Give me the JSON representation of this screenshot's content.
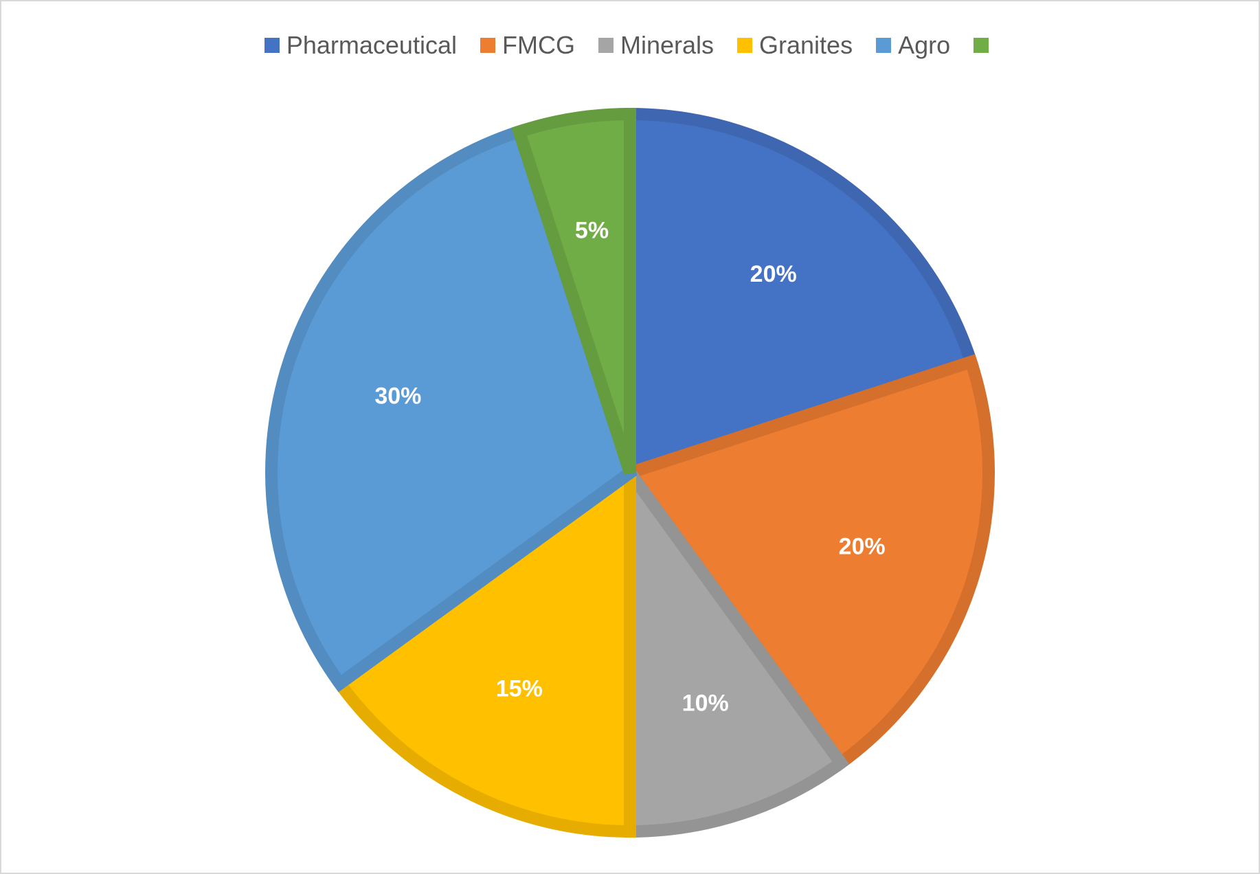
{
  "chart_data": {
    "type": "pie",
    "categories": [
      "Pharmaceutical",
      "FMCG",
      "Minerals",
      "Granites",
      "Agro",
      ""
    ],
    "values": [
      20,
      20,
      10,
      15,
      30,
      5
    ],
    "data_labels": [
      "20%",
      "20%",
      "10%",
      "15%",
      "30%",
      "5%"
    ],
    "colors": [
      "#4472C4",
      "#ED7D31",
      "#A5A5A5",
      "#FFC000",
      "#5B9BD5",
      "#70AD47"
    ],
    "border_colors": [
      "#3F67B1",
      "#D5702C",
      "#949494",
      "#E6AD00",
      "#528CC0",
      "#659C40"
    ],
    "legend_position": "top",
    "start_angle": "12 o'clock",
    "direction": "clockwise"
  }
}
